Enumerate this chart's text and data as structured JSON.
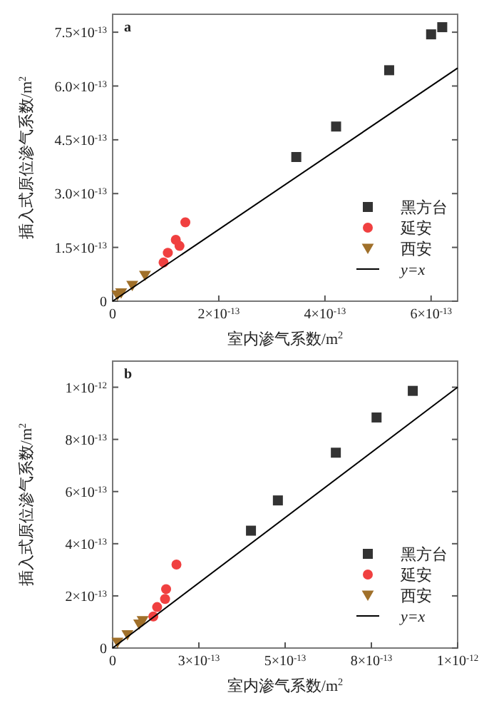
{
  "chart_data": [
    {
      "type": "scatter",
      "title": "a",
      "xlabel": "室内渗气系数/m$^{2}$",
      "ylabel": "插入式原位渗气系数/m$^{2}$",
      "xlim": [
        0,
        6.5e-13
      ],
      "ylim": [
        0,
        8e-13
      ],
      "xticks": [
        0,
        {
          "value": 2e-13,
          "label": "2×10$^{-13}$"
        },
        {
          "value": 4e-13,
          "label": "4×10$^{-13}$"
        },
        {
          "value": 6e-13,
          "label": "6×10$^{-13}$"
        }
      ],
      "yticks": [
        0,
        {
          "value": 1.5e-13,
          "label": "1.5×10$^{-13}$"
        },
        {
          "value": 3e-13,
          "label": "3.0×10$^{-13}$"
        },
        {
          "value": 4.5e-13,
          "label": "4.5×10$^{-13}$"
        },
        {
          "value": 6e-13,
          "label": "6.0×10$^{-13}$"
        },
        {
          "value": 7.5e-13,
          "label": "7.5×10$^{-13}$"
        }
      ],
      "legend": "bottom right",
      "series": [
        {
          "name": "黑方台",
          "color": "#333333",
          "marker": "square",
          "x": [
            3.46e-13,
            4.21e-13,
            5.21e-13,
            6e-13,
            6.21e-13
          ],
          "values": [
            4.02e-13,
            4.87e-13,
            6.44e-13,
            7.44e-13,
            7.64e-13
          ]
        },
        {
          "name": "延安",
          "color": "#f04040",
          "marker": "circle",
          "x": [
            9.6e-14,
            1.04e-13,
            1.19e-13,
            1.26e-13,
            1.37e-13
          ],
          "values": [
            1.08e-13,
            1.35e-13,
            1.71e-13,
            1.54e-13,
            2.2e-13
          ]
        },
        {
          "name": "西安",
          "color": "#a0702a",
          "marker": "triangle",
          "x": [
            9e-15,
            1.6e-14,
            3.7e-14,
            6.1e-14
          ],
          "values": [
            1.7e-14,
            2.3e-14,
            4.4e-14,
            7.2e-14
          ]
        },
        {
          "name": "y=x",
          "type": "line",
          "color": "#000000",
          "marker": "none",
          "x": [
            0,
            6.5e-13
          ],
          "values": [
            0,
            6.5e-13
          ]
        }
      ]
    },
    {
      "type": "scatter",
      "title": "b",
      "xlabel": "室内渗气系数/m$^{2}$",
      "ylabel": "插入式原位渗气系数/m$^{2}$",
      "xlim": [
        0,
        1e-12
      ],
      "ylim": [
        0,
        1.1e-12
      ],
      "xticks": [
        0,
        {
          "value": 2.5e-13,
          "label": "3×10$^{-13}$"
        },
        {
          "value": 5e-13,
          "label": "5×10$^{-13}$"
        },
        {
          "value": 7.5e-13,
          "label": "8×10$^{-13}$"
        },
        {
          "value": 1e-12,
          "label": "1×10$^{-12}$"
        }
      ],
      "yticks": [
        0,
        {
          "value": 2e-13,
          "label": "2×10$^{-13}$"
        },
        {
          "value": 4e-13,
          "label": "4×10$^{-13}$"
        },
        {
          "value": 6e-13,
          "label": "6×10$^{-13}$"
        },
        {
          "value": 8e-13,
          "label": "8×10$^{-13}$"
        },
        {
          "value": 1e-12,
          "label": "1×10$^{-12}$"
        }
      ],
      "legend": "bottom right",
      "series": [
        {
          "name": "黑方台",
          "color": "#333333",
          "marker": "square",
          "x": [
            4.01e-13,
            4.79e-13,
            6.47e-13,
            7.65e-13,
            8.7e-13
          ],
          "values": [
            4.5e-13,
            5.66e-13,
            7.49e-13,
            8.84e-13,
            9.86e-13
          ]
        },
        {
          "name": "延安",
          "color": "#f04040",
          "marker": "circle",
          "x": [
            1.18e-13,
            1.29e-13,
            1.52e-13,
            1.55e-13,
            1.85e-13
          ],
          "values": [
            1.21e-13,
            1.57e-13,
            1.88e-13,
            2.26e-13,
            3.2e-13
          ]
        },
        {
          "name": "西安",
          "color": "#a0702a",
          "marker": "triangle",
          "x": [
            1.4e-14,
            4.3e-14,
            7.7e-14,
            8.7e-14
          ],
          "values": [
            2.2e-14,
            5.1e-14,
            9.2e-14,
            1.05e-13
          ]
        },
        {
          "name": "y=x",
          "type": "line",
          "color": "#000000",
          "marker": "none",
          "x": [
            0,
            1e-12
          ],
          "values": [
            0,
            1e-12
          ]
        }
      ]
    }
  ]
}
